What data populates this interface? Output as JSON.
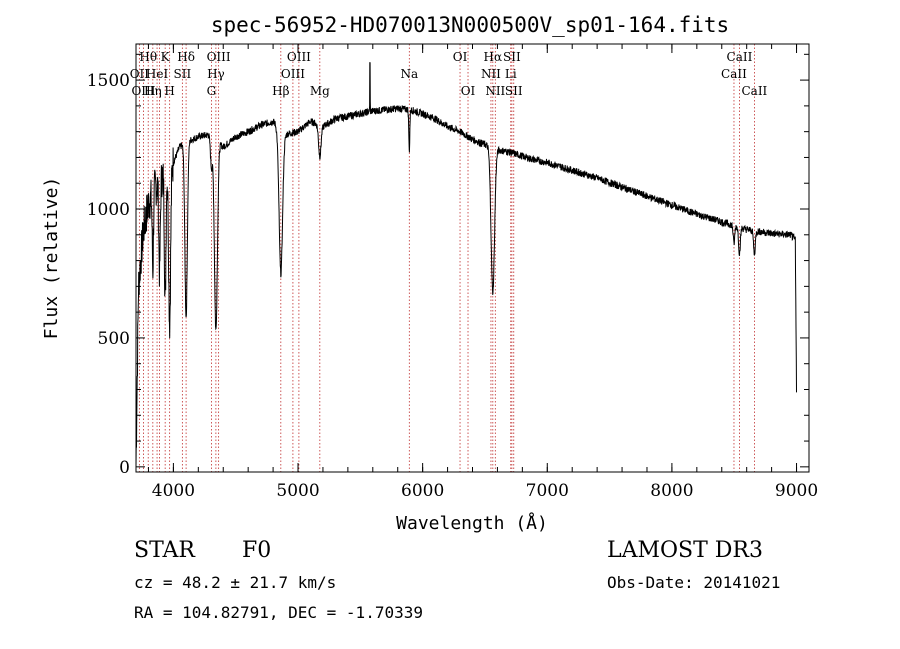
{
  "chart_data": {
    "type": "line",
    "title": "spec-56952-HD070013N000500V_sp01-164.fits",
    "xlabel": "Wavelength (Å)",
    "ylabel": "Flux (relative)",
    "xlim": [
      3700,
      9100
    ],
    "ylim": [
      -20,
      1640
    ],
    "x_ticks": [
      4000,
      5000,
      6000,
      7000,
      8000,
      9000
    ],
    "x_tick_labels": [
      "4000",
      "5000",
      "6000",
      "7000",
      "8000",
      "9000"
    ],
    "y_ticks": [
      0,
      500,
      1000,
      1500
    ],
    "y_tick_labels": [
      "0",
      "500",
      "1000",
      "1500"
    ],
    "grid": false,
    "series": [
      {
        "name": "flux",
        "continuum": [
          [
            3700,
            0
          ],
          [
            3720,
            700
          ],
          [
            3760,
            920
          ],
          [
            3800,
            1020
          ],
          [
            3850,
            1080
          ],
          [
            3900,
            1120
          ],
          [
            3950,
            1150
          ],
          [
            4000,
            1180
          ],
          [
            4050,
            1240
          ],
          [
            4100,
            1260
          ],
          [
            4200,
            1280
          ],
          [
            4300,
            1290
          ],
          [
            4400,
            1240
          ],
          [
            4500,
            1280
          ],
          [
            4600,
            1300
          ],
          [
            4700,
            1325
          ],
          [
            4800,
            1340
          ],
          [
            4900,
            1290
          ],
          [
            5000,
            1300
          ],
          [
            5100,
            1340
          ],
          [
            5200,
            1320
          ],
          [
            5300,
            1350
          ],
          [
            5400,
            1360
          ],
          [
            5500,
            1370
          ],
          [
            5600,
            1380
          ],
          [
            5700,
            1385
          ],
          [
            5800,
            1390
          ],
          [
            5900,
            1385
          ],
          [
            6000,
            1370
          ],
          [
            6100,
            1350
          ],
          [
            6200,
            1320
          ],
          [
            6300,
            1300
          ],
          [
            6400,
            1270
          ],
          [
            6500,
            1250
          ],
          [
            6600,
            1230
          ],
          [
            6700,
            1220
          ],
          [
            6800,
            1205
          ],
          [
            6900,
            1190
          ],
          [
            7000,
            1180
          ],
          [
            7200,
            1150
          ],
          [
            7400,
            1120
          ],
          [
            7600,
            1085
          ],
          [
            7800,
            1050
          ],
          [
            8000,
            1015
          ],
          [
            8200,
            980
          ],
          [
            8400,
            950
          ],
          [
            8600,
            920
          ],
          [
            8800,
            905
          ],
          [
            8950,
            900
          ],
          [
            8990,
            880
          ],
          [
            9000,
            300
          ]
        ],
        "absorption_lines": [
          {
            "name": "Hepsilon",
            "wavelength": 3970,
            "depth": 600,
            "width": 8
          },
          {
            "name": "H8",
            "wavelength": 3889,
            "depth": 350,
            "width": 6
          },
          {
            "name": "H9",
            "wavelength": 3835,
            "depth": 300,
            "width": 5
          },
          {
            "name": "CaK",
            "wavelength": 3934,
            "depth": 500,
            "width": 6
          },
          {
            "name": "Hdelta",
            "wavelength": 4102,
            "depth": 680,
            "width": 10
          },
          {
            "name": "Hgamma",
            "wavelength": 4341,
            "depth": 740,
            "width": 12
          },
          {
            "name": "Gband",
            "wavelength": 4305,
            "depth": 120,
            "width": 8
          },
          {
            "name": "Hbeta",
            "wavelength": 4862,
            "depth": 560,
            "width": 14
          },
          {
            "name": "Mg",
            "wavelength": 5175,
            "depth": 120,
            "width": 10
          },
          {
            "name": "Na",
            "wavelength": 5893,
            "depth": 160,
            "width": 4
          },
          {
            "name": "Halpha",
            "wavelength": 6563,
            "depth": 560,
            "width": 14
          },
          {
            "name": "CaII_8498",
            "wavelength": 8498,
            "depth": 70,
            "width": 6
          },
          {
            "name": "CaII_8542",
            "wavelength": 8542,
            "depth": 100,
            "width": 7
          },
          {
            "name": "CaII_8662",
            "wavelength": 8662,
            "depth": 90,
            "width": 7
          }
        ],
        "emission_spikes": [
          {
            "name": "skyline",
            "wavelength": 5577,
            "height": 230
          }
        ]
      }
    ],
    "line_markers": [
      {
        "wavelength": 3727,
        "labels": [
          {
            "text": "OII",
            "row": 2
          }
        ]
      },
      {
        "wavelength": 3760,
        "labels": [
          {
            "text": "OIII",
            "row": 3
          }
        ]
      },
      {
        "wavelength": 3798,
        "labels": [
          {
            "text": "Hθ",
            "row": 1
          }
        ]
      },
      {
        "wavelength": 3835,
        "labels": [
          {
            "text": "Hη",
            "row": 3
          }
        ]
      },
      {
        "wavelength": 3869,
        "labels": [
          {
            "text": "HeI",
            "row": 2
          }
        ]
      },
      {
        "wavelength": 3889,
        "labels": []
      },
      {
        "wavelength": 3934,
        "labels": [
          {
            "text": "K",
            "row": 1
          }
        ]
      },
      {
        "wavelength": 3970,
        "labels": [
          {
            "text": "H",
            "row": 3
          }
        ]
      },
      {
        "wavelength": 4072,
        "labels": [
          {
            "text": "SII",
            "row": 2
          }
        ]
      },
      {
        "wavelength": 4102,
        "labels": [
          {
            "text": "Hδ",
            "row": 1
          }
        ]
      },
      {
        "wavelength": 4305,
        "labels": [
          {
            "text": "G",
            "row": 3
          }
        ]
      },
      {
        "wavelength": 4341,
        "labels": [
          {
            "text": "Hγ",
            "row": 2
          }
        ]
      },
      {
        "wavelength": 4363,
        "labels": [
          {
            "text": "OIII",
            "row": 1
          }
        ]
      },
      {
        "wavelength": 4862,
        "labels": [
          {
            "text": "Hβ",
            "row": 3
          }
        ]
      },
      {
        "wavelength": 4959,
        "labels": [
          {
            "text": "OIII",
            "row": 2
          }
        ]
      },
      {
        "wavelength": 5007,
        "labels": [
          {
            "text": "OIII",
            "row": 1
          }
        ]
      },
      {
        "wavelength": 5175,
        "labels": [
          {
            "text": "Mg",
            "row": 3
          }
        ]
      },
      {
        "wavelength": 5893,
        "labels": [
          {
            "text": "Na",
            "row": 2
          }
        ]
      },
      {
        "wavelength": 6300,
        "labels": [
          {
            "text": "OI",
            "row": 1
          }
        ]
      },
      {
        "wavelength": 6364,
        "labels": [
          {
            "text": "OI",
            "row": 3
          }
        ]
      },
      {
        "wavelength": 6548,
        "labels": [
          {
            "text": "NII",
            "row": 2
          }
        ]
      },
      {
        "wavelength": 6563,
        "labels": [
          {
            "text": "Hα",
            "row": 1
          }
        ]
      },
      {
        "wavelength": 6583,
        "labels": [
          {
            "text": "NII",
            "row": 3
          }
        ]
      },
      {
        "wavelength": 6707,
        "labels": [
          {
            "text": "Li",
            "row": 2
          }
        ]
      },
      {
        "wavelength": 6716,
        "labels": [
          {
            "text": "SII",
            "row": 1
          }
        ]
      },
      {
        "wavelength": 6731,
        "labels": [
          {
            "text": "SII",
            "row": 3
          }
        ]
      },
      {
        "wavelength": 8498,
        "labels": [
          {
            "text": "CaII",
            "row": 2
          }
        ]
      },
      {
        "wavelength": 8542,
        "labels": [
          {
            "text": "CaII",
            "row": 1
          }
        ]
      },
      {
        "wavelength": 8662,
        "labels": [
          {
            "text": "CaII",
            "row": 3
          }
        ]
      }
    ],
    "colors": {
      "line": "#000000",
      "marker": "#c03030",
      "axis": "#000000"
    }
  },
  "info": {
    "class": "STAR",
    "subclass": "F0",
    "survey": "LAMOST DR3",
    "cz": "cz = 48.2 ± 21.7 km/s",
    "obs_date": "Obs-Date: 20141021",
    "radec": "RA = 104.82791, DEC =  -1.70339"
  }
}
